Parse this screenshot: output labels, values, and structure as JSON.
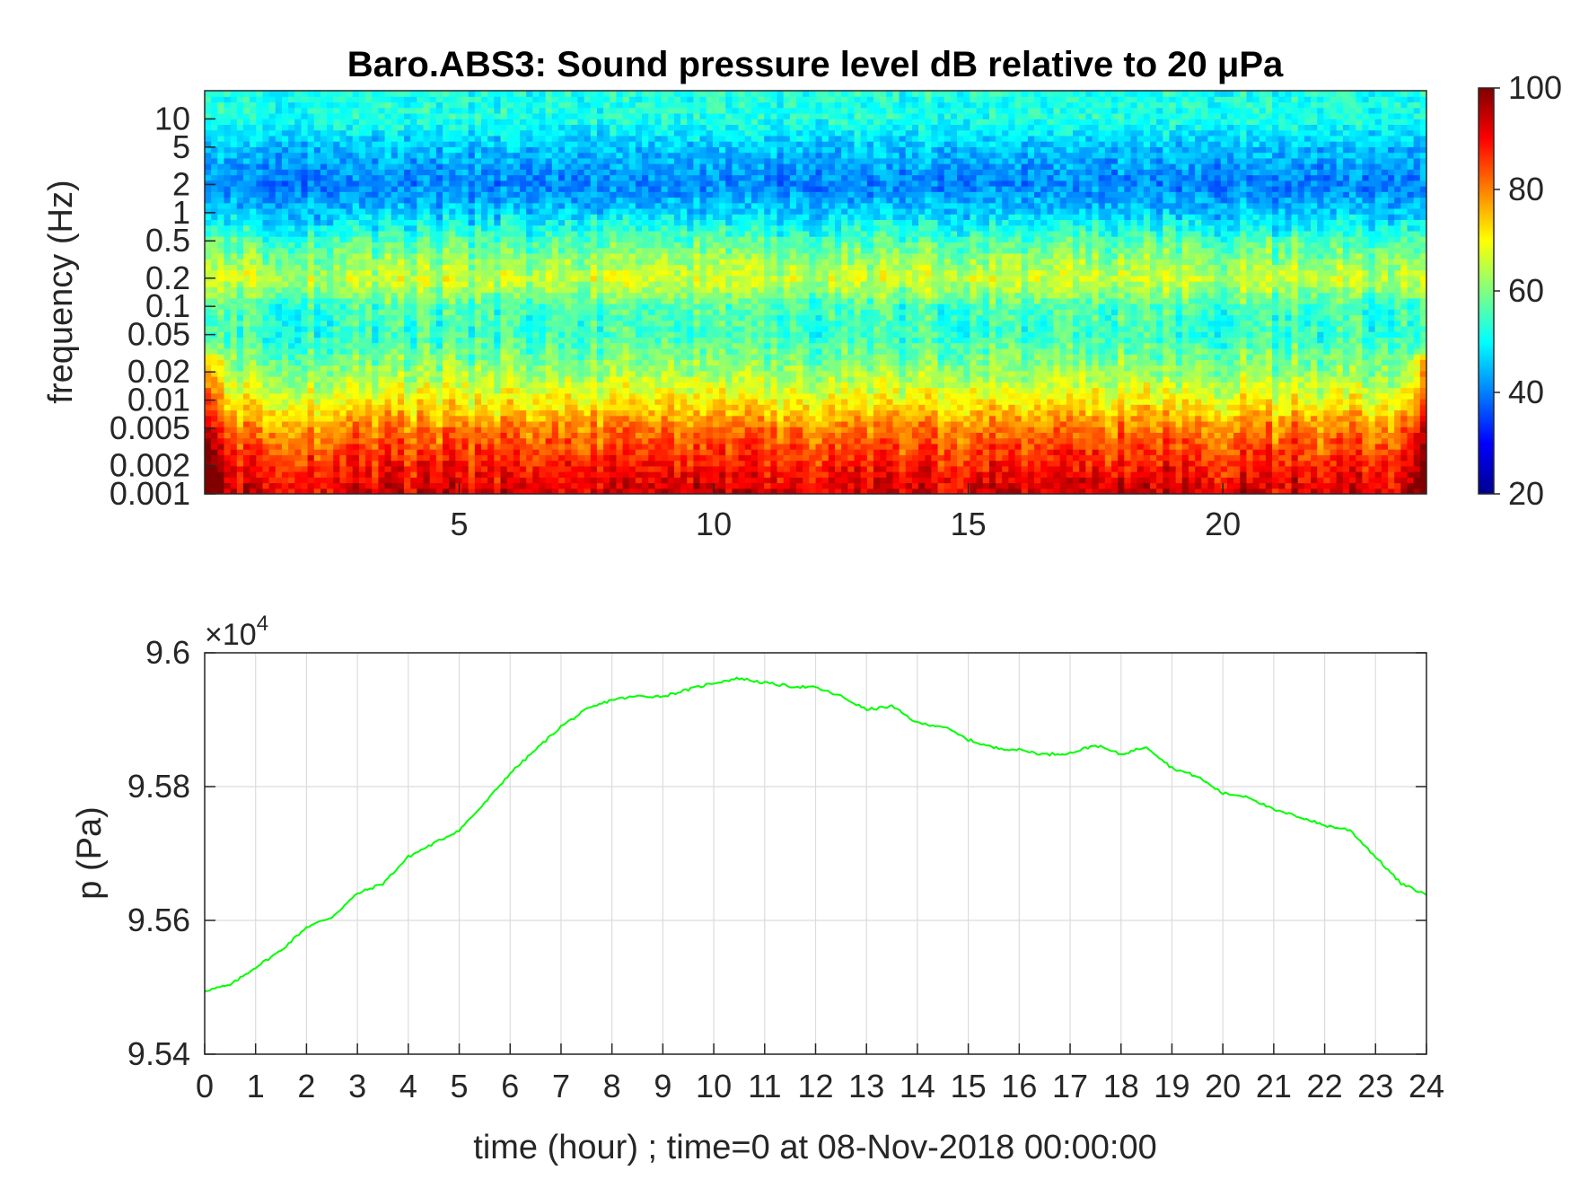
{
  "chart_data": [
    {
      "type": "heatmap",
      "title": "Baro.ABS3: Sound pressure level dB relative to 20 μPa",
      "ylabel": "frequency (Hz)",
      "xlabel": "",
      "xlim": [
        0,
        24
      ],
      "x_ticks": [
        5,
        10,
        15,
        20
      ],
      "x_tick_labels": [
        "5",
        "10",
        "15",
        "20"
      ],
      "y_scale": "log",
      "ylim": [
        0.001,
        20
      ],
      "y_ticks": [
        0.001,
        0.002,
        0.005,
        0.01,
        0.02,
        0.05,
        0.1,
        0.2,
        0.5,
        1,
        2,
        5,
        10
      ],
      "y_tick_labels": [
        "0.001",
        "0.002",
        "0.005",
        "0.01",
        "0.02",
        "0.05",
        "0.1",
        "0.2",
        "0.5",
        "1",
        "2",
        "5",
        "10"
      ],
      "colorbar": {
        "colormap": "jet",
        "clim": [
          20,
          100
        ],
        "ticks": [
          20,
          40,
          60,
          80,
          100
        ],
        "tick_labels": [
          "20",
          "40",
          "60",
          "80",
          "100"
        ]
      },
      "approx_levels_db_by_frequency": [
        {
          "frequency_hz": 0.001,
          "level_db": 93
        },
        {
          "frequency_hz": 0.002,
          "level_db": 88
        },
        {
          "frequency_hz": 0.005,
          "level_db": 80
        },
        {
          "frequency_hz": 0.01,
          "level_db": 70
        },
        {
          "frequency_hz": 0.02,
          "level_db": 62
        },
        {
          "frequency_hz": 0.05,
          "level_db": 54
        },
        {
          "frequency_hz": 0.1,
          "level_db": 55
        },
        {
          "frequency_hz": 0.2,
          "level_db": 66
        },
        {
          "frequency_hz": 0.5,
          "level_db": 56
        },
        {
          "frequency_hz": 1,
          "level_db": 46
        },
        {
          "frequency_hz": 2,
          "level_db": 40
        },
        {
          "frequency_hz": 5,
          "level_db": 45
        },
        {
          "frequency_hz": 10,
          "level_db": 52
        }
      ]
    },
    {
      "type": "line",
      "ylabel": "p (Pa)",
      "xlabel": "time (hour) ; time=0 at 08-Nov-2018 00:00:00",
      "exponent_label": "×10",
      "exponent_power": "4",
      "xlim": [
        0,
        24
      ],
      "ylim": [
        95400,
        96000
      ],
      "grid": true,
      "x_ticks": [
        0,
        1,
        2,
        3,
        4,
        5,
        6,
        7,
        8,
        9,
        10,
        11,
        12,
        13,
        14,
        15,
        16,
        17,
        18,
        19,
        20,
        21,
        22,
        23,
        24
      ],
      "x_tick_labels": [
        "0",
        "1",
        "2",
        "3",
        "4",
        "5",
        "6",
        "7",
        "8",
        "9",
        "10",
        "11",
        "12",
        "13",
        "14",
        "15",
        "16",
        "17",
        "18",
        "19",
        "20",
        "21",
        "22",
        "23",
        "24"
      ],
      "y_ticks": [
        95400,
        95600,
        95800,
        96000
      ],
      "y_tick_labels": [
        "9.54",
        "9.56",
        "9.58",
        "9.6"
      ],
      "series": [
        {
          "color": "#00ff00",
          "x": [
            0,
            0.5,
            1,
            1.5,
            2,
            2.5,
            3,
            3.5,
            4,
            4.5,
            5,
            5.5,
            6,
            6.5,
            7,
            7.5,
            8,
            8.5,
            9,
            9.5,
            10,
            10.5,
            11,
            11.5,
            12,
            12.5,
            13,
            13.5,
            14,
            14.5,
            15,
            15.5,
            16,
            16.5,
            17,
            17.5,
            18,
            18.5,
            19,
            19.5,
            20,
            20.5,
            21,
            21.5,
            22,
            22.5,
            23,
            23.5,
            24
          ],
          "y": [
            95495,
            95503,
            95530,
            95555,
            95590,
            95605,
            95640,
            95655,
            95695,
            95715,
            95735,
            95775,
            95820,
            95855,
            95890,
            95915,
            95930,
            95935,
            95935,
            95945,
            95955,
            95962,
            95955,
            95950,
            95948,
            95935,
            95915,
            95920,
            95895,
            95890,
            95870,
            95858,
            95855,
            95848,
            95850,
            95862,
            95848,
            95860,
            95828,
            95815,
            95790,
            95785,
            95765,
            95755,
            95742,
            95735,
            95695,
            95655,
            95638
          ]
        }
      ]
    }
  ]
}
